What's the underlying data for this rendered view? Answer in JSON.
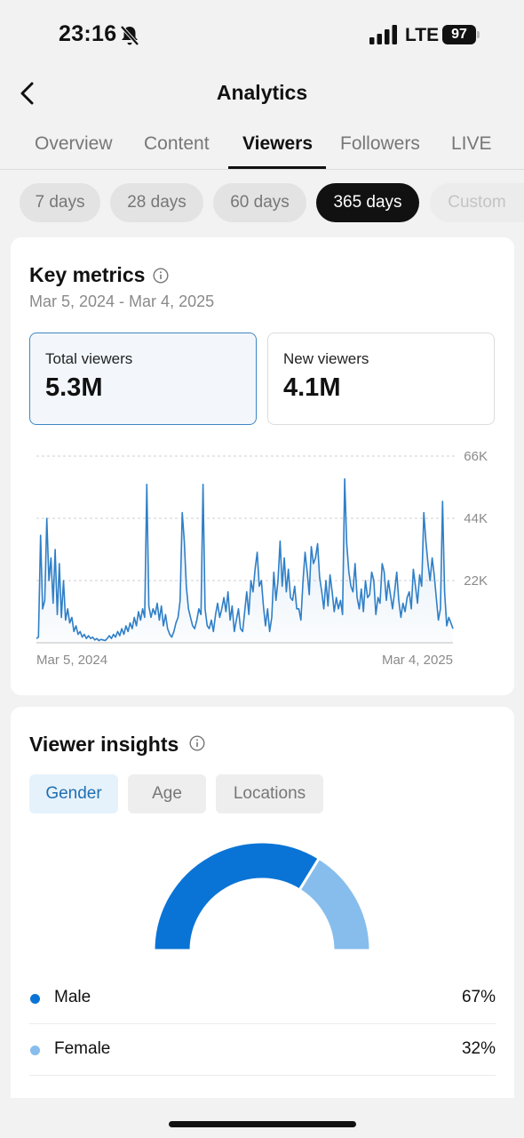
{
  "status_bar": {
    "time": "23:16",
    "network": "LTE",
    "battery": "97"
  },
  "header": {
    "title": "Analytics"
  },
  "tabs": [
    {
      "label": "Overview",
      "active": false
    },
    {
      "label": "Content",
      "active": false
    },
    {
      "label": "Viewers",
      "active": true
    },
    {
      "label": "Followers",
      "active": false
    },
    {
      "label": "LIVE",
      "active": false
    }
  ],
  "ranges": [
    {
      "label": "7 days"
    },
    {
      "label": "28 days"
    },
    {
      "label": "60 days"
    },
    {
      "label": "365 days",
      "active": true
    },
    {
      "label": "Custom"
    }
  ],
  "key_metrics": {
    "title": "Key metrics",
    "date_range": "Mar 5, 2024 - Mar 4, 2025",
    "total_viewers": {
      "label": "Total viewers",
      "value": "5.3M"
    },
    "new_viewers": {
      "label": "New viewers",
      "value": "4.1M"
    }
  },
  "chart_data": {
    "type": "area",
    "x_start": "Mar 5, 2024",
    "x_end": "Mar 4, 2025",
    "y_ticks": [
      "22K",
      "44K",
      "66K"
    ],
    "ylim": [
      0,
      66000
    ],
    "grid": true,
    "color": "#2f7fc7",
    "values": [
      1500,
      2000,
      38000,
      12000,
      15000,
      44000,
      22000,
      30000,
      14000,
      33000,
      10000,
      28000,
      9000,
      22000,
      8000,
      12000,
      7000,
      9000,
      4000,
      6000,
      3000,
      4000,
      2000,
      3000,
      1500,
      2500,
      1500,
      2000,
      1000,
      1500,
      800,
      1200,
      1000,
      800,
      1500,
      2500,
      1500,
      3000,
      2000,
      4000,
      2500,
      5000,
      3000,
      6000,
      4000,
      7000,
      5000,
      9000,
      6000,
      11000,
      8000,
      12000,
      9000,
      56000,
      13000,
      9000,
      12000,
      10000,
      14000,
      8000,
      13000,
      6000,
      10000,
      5000,
      3000,
      2000,
      4000,
      7000,
      9000,
      15000,
      46000,
      36000,
      20000,
      12000,
      9000,
      6000,
      5000,
      8000,
      12000,
      10000,
      56000,
      12000,
      6000,
      5000,
      8000,
      4000,
      10000,
      14000,
      9000,
      12000,
      16000,
      11000,
      18000,
      8000,
      13000,
      4000,
      8000,
      12000,
      5000,
      4000,
      11000,
      18000,
      10000,
      22000,
      18000,
      26000,
      32000,
      20000,
      22000,
      13000,
      6000,
      12000,
      4000,
      9000,
      25000,
      15000,
      22000,
      36000,
      20000,
      30000,
      18000,
      26000,
      16000,
      15000,
      20000,
      12000,
      12000,
      8000,
      22000,
      32000,
      25000,
      17000,
      34000,
      28000,
      30000,
      35000,
      23000,
      18000,
      12000,
      22000,
      13000,
      24000,
      18000,
      11000,
      16000,
      12000,
      15000,
      10000,
      58000,
      35000,
      25000,
      20000,
      18000,
      28000,
      16000,
      12000,
      19000,
      11000,
      22000,
      16000,
      17000,
      25000,
      22000,
      10000,
      16000,
      14000,
      28000,
      25000,
      15000,
      22000,
      17000,
      12000,
      18000,
      25000,
      15000,
      9000,
      14000,
      11000,
      16000,
      18000,
      12000,
      26000,
      20000,
      14000,
      24000,
      20000,
      46000,
      36000,
      28000,
      22000,
      30000,
      24000,
      16000,
      8000,
      12000,
      50000,
      18000,
      6000,
      9000,
      7000,
      5000
    ]
  },
  "viewer_insights": {
    "title": "Viewer insights",
    "segments": [
      {
        "label": "Gender",
        "active": true
      },
      {
        "label": "Age",
        "active": false
      },
      {
        "label": "Locations",
        "active": false
      }
    ],
    "gender": [
      {
        "name": "Male",
        "percent": 67,
        "label": "67%",
        "color": "#0a74d6"
      },
      {
        "name": "Female",
        "percent": 32,
        "label": "32%",
        "color": "#86bdec"
      }
    ]
  }
}
